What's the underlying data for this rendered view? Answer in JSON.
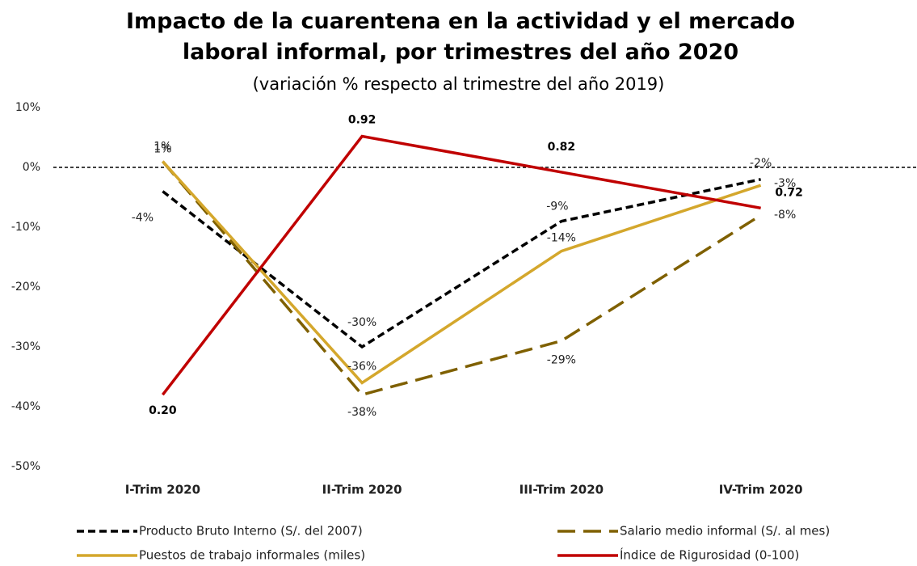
{
  "chart_data": {
    "type": "line",
    "title": "Impacto de la cuarentena en la actividad y el mercado laboral informal, por trimestres del año 2020",
    "subtitle": "(variación % respecto al trimestre del año 2019)",
    "categories": [
      "I-Trim 2020",
      "II-Trim 2020",
      "III-Trim 2020",
      "IV-Trim 2020"
    ],
    "ylim": [
      -50,
      10
    ],
    "yticks": [
      {
        "value": 10,
        "label": "10%"
      },
      {
        "value": 0,
        "label": "0%"
      },
      {
        "value": -10,
        "label": "-10%"
      },
      {
        "value": -20,
        "label": "-20%"
      },
      {
        "value": -30,
        "label": "-30%"
      },
      {
        "value": -40,
        "label": "-40%"
      },
      {
        "value": -50,
        "label": "-50%"
      }
    ],
    "y2lim": [
      0,
      1
    ],
    "zero_line": true,
    "legend": "bottom",
    "series": [
      {
        "name": "Producto Bruto Interno (S/. del 2007)",
        "color": "#000000",
        "line_style": "dashed",
        "values": [
          -4,
          -30,
          -9,
          -2
        ],
        "value_labels": [
          "-4%",
          "-30%",
          "-9%",
          "-2%"
        ]
      },
      {
        "name": "Salario medio informal (S/. al mes)",
        "color": "#7f6000",
        "line_style": "long-dash",
        "values": [
          1,
          -38,
          -29,
          -8
        ],
        "value_labels": [
          "1%",
          "-38%",
          "-29%",
          "-8%"
        ]
      },
      {
        "name": "Puestos de trabajo informales (miles)",
        "color": "#d4a72c",
        "line_style": "solid",
        "values": [
          1,
          -36,
          -14,
          -3
        ],
        "value_labels": [
          "1%",
          "-36%",
          "-14%",
          "-3%"
        ]
      },
      {
        "name": "Índice de Rigurosidad (0-100)",
        "color": "#c00000",
        "line_style": "solid",
        "axis": "y2",
        "values": [
          0.2,
          0.92,
          0.82,
          0.72
        ],
        "value_labels": [
          "0.20",
          "0.92",
          "0.82",
          "0.72"
        ]
      }
    ]
  }
}
